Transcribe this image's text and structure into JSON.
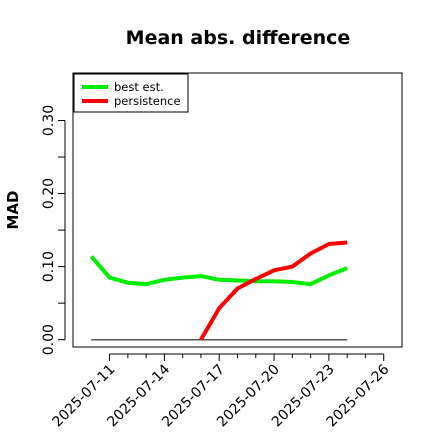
{
  "chart_data": {
    "type": "line",
    "title": "Mean abs. difference",
    "ylabel": "MAD",
    "xlabel": "",
    "x": [
      "2025-07-10",
      "2025-07-11",
      "2025-07-12",
      "2025-07-13",
      "2025-07-14",
      "2025-07-15",
      "2025-07-16",
      "2025-07-17",
      "2025-07-18",
      "2025-07-19",
      "2025-07-20",
      "2025-07-21",
      "2025-07-22",
      "2025-07-23",
      "2025-07-24"
    ],
    "x_ticks": [
      "2025-07-11",
      "2025-07-14",
      "2025-07-17",
      "2025-07-20",
      "2025-07-23",
      "2025-07-26"
    ],
    "xlim": [
      "2025-07-09",
      "2025-07-27"
    ],
    "ylim": [
      -0.01,
      0.365
    ],
    "y_ticks": [
      0.0,
      0.1,
      0.2,
      0.3
    ],
    "y_tick_labels": [
      "0.00",
      "0.10",
      "0.20",
      "0.30"
    ],
    "reference_line": 0,
    "legend_position": "top-left",
    "series": [
      {
        "name": "best est.",
        "color": "#00ee00",
        "values": [
          0.114,
          0.085,
          0.078,
          0.076,
          0.082,
          0.085,
          0.087,
          0.082,
          0.081,
          0.08,
          0.08,
          0.079,
          0.076,
          0.088,
          0.098
        ]
      },
      {
        "name": "persistence",
        "color": "#ff0000",
        "values": [
          null,
          null,
          null,
          null,
          null,
          null,
          0.0,
          0.043,
          0.07,
          0.083,
          0.095,
          0.1,
          0.118,
          0.131,
          0.133
        ]
      }
    ],
    "colors": {
      "reference": "#555555",
      "frame": "#000000"
    }
  }
}
